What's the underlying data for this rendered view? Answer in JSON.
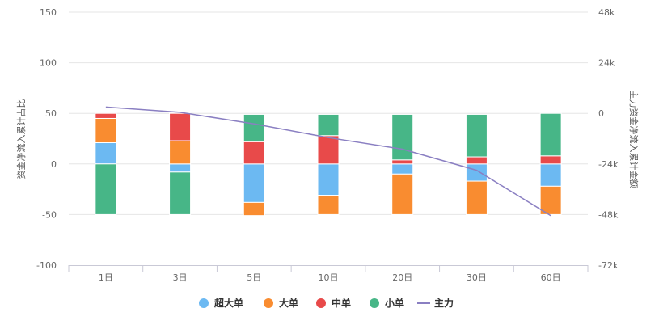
{
  "chart_data": {
    "type": "bar",
    "stacked": true,
    "categories": [
      "1日",
      "3日",
      "5日",
      "10日",
      "20日",
      "30日",
      "60日"
    ],
    "y_left": {
      "label": "资金净流入累计占比",
      "ticks": [
        "150",
        "100",
        "50",
        "0",
        "-50",
        "-100"
      ],
      "range": [
        -100,
        150
      ]
    },
    "y_right": {
      "label": "主力资金净流入累计金额",
      "ticks": [
        "48k",
        "24k",
        "0",
        "-24k",
        "-48k",
        "-72k"
      ],
      "range": [
        -72000,
        48000
      ]
    },
    "series": [
      {
        "name": "超大单",
        "color": "#6cb9f2",
        "values": [
          21,
          -8,
          -38,
          -31,
          -10,
          -17,
          -22
        ]
      },
      {
        "name": "大单",
        "color": "#f98c30",
        "values": [
          24,
          23,
          -13,
          -19,
          -40,
          -33,
          -28
        ]
      },
      {
        "name": "中单",
        "color": "#e84a4a",
        "values": [
          5,
          27,
          22,
          28,
          4,
          7,
          8
        ]
      },
      {
        "name": "小单",
        "color": "#47b687",
        "values": [
          -50,
          -42,
          27,
          21,
          45,
          42,
          42
        ]
      }
    ],
    "line": {
      "name": "主力",
      "color": "#8a7fc2",
      "values": [
        3000,
        500,
        -5000,
        -11500,
        -17000,
        -27000,
        -48500
      ]
    }
  }
}
